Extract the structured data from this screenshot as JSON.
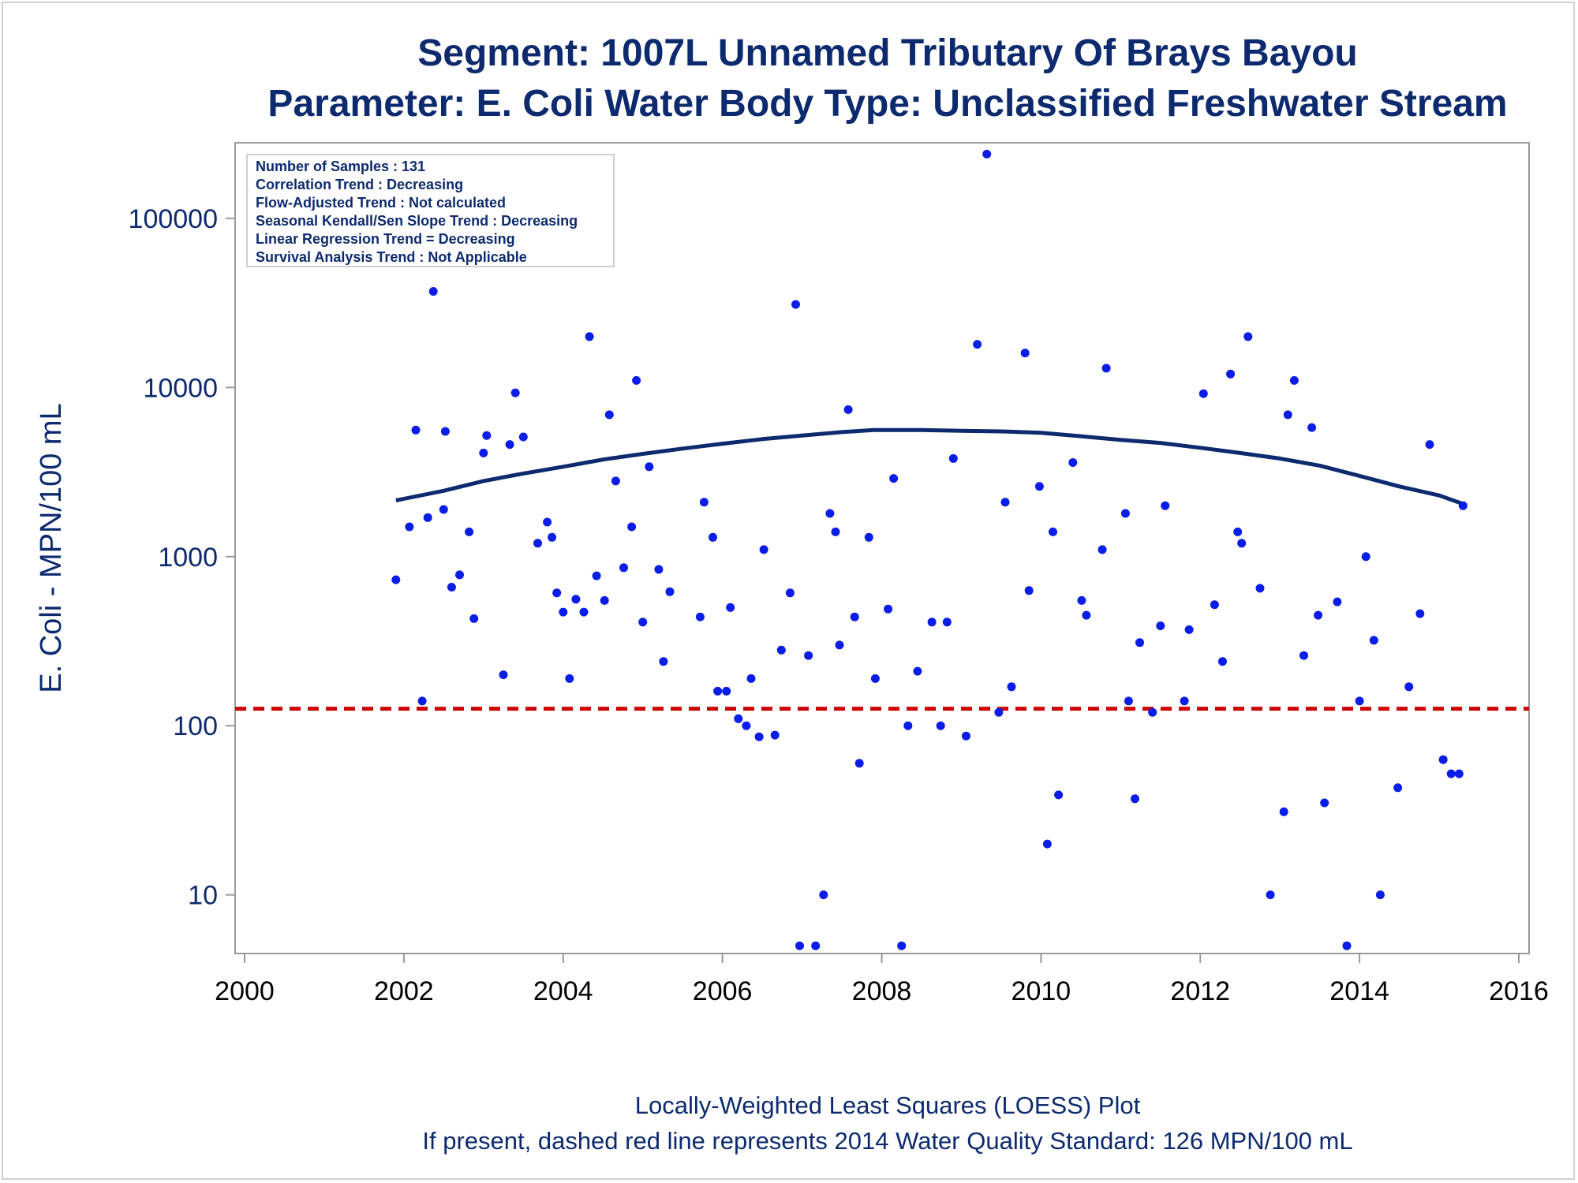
{
  "chart_data": {
    "type": "scatter",
    "title": "Segment: 1007L  Unnamed Tributary Of Brays Bayou",
    "subtitle": "Parameter: E. Coli   Water Body Type: Unclassified Freshwater Stream",
    "xlabel": "",
    "ylabel": "E. Coli - MPN/100 mL",
    "footnotes": [
      "Locally-Weighted Least Squares (LOESS) Plot",
      "If present, dashed red line represents 2014 Water Quality Standard: 126 MPN/100 mL"
    ],
    "xlim": [
      2000,
      2016
    ],
    "ylim": [
      4.5,
      280000
    ],
    "y_scale": "log",
    "x_ticks": [
      2000,
      2002,
      2004,
      2006,
      2008,
      2010,
      2012,
      2014,
      2016
    ],
    "y_ticks": [
      10,
      100,
      1000,
      10000,
      100000
    ],
    "grid": false,
    "stats_box": {
      "position": "top-left",
      "lines": [
        "Number of Samples : 131",
        "Correlation Trend : Decreasing",
        "Flow-Adjusted Trend : Not calculated",
        "Seasonal Kendall/Sen Slope Trend : Decreasing",
        "Linear Regression Trend = Decreasing",
        "Survival Analysis Trend : Not Applicable"
      ]
    },
    "reference_line": {
      "value": 126,
      "style": "dashed",
      "color": "#cc0000"
    },
    "colors": {
      "points": "#0a1de8",
      "loess": "#0d2a6e",
      "text": "#0d2a6e",
      "axis": "#9a9a9a"
    },
    "series": [
      {
        "kind": "points",
        "points": [
          [
            2001.9,
            730
          ],
          [
            2002.07,
            1500
          ],
          [
            2002.15,
            5600
          ],
          [
            2002.23,
            140
          ],
          [
            2002.3,
            1700
          ],
          [
            2002.37,
            37000
          ],
          [
            2002.5,
            1900
          ],
          [
            2002.52,
            5500
          ],
          [
            2002.6,
            660
          ],
          [
            2002.7,
            780
          ],
          [
            2002.82,
            1400
          ],
          [
            2002.88,
            430
          ],
          [
            2003.0,
            4100
          ],
          [
            2003.04,
            5200
          ],
          [
            2003.25,
            200
          ],
          [
            2003.33,
            4600
          ],
          [
            2003.4,
            9300
          ],
          [
            2003.5,
            5100
          ],
          [
            2003.68,
            1200
          ],
          [
            2003.8,
            1600
          ],
          [
            2003.86,
            1300
          ],
          [
            2003.92,
            610
          ],
          [
            2004.0,
            470
          ],
          [
            2004.08,
            190
          ],
          [
            2004.16,
            560
          ],
          [
            2004.26,
            470
          ],
          [
            2004.33,
            20000
          ],
          [
            2004.42,
            770
          ],
          [
            2004.52,
            550
          ],
          [
            2004.58,
            6900
          ],
          [
            2004.66,
            2800
          ],
          [
            2004.76,
            860
          ],
          [
            2004.86,
            1500
          ],
          [
            2004.92,
            11000
          ],
          [
            2005.0,
            410
          ],
          [
            2005.08,
            3400
          ],
          [
            2005.2,
            840
          ],
          [
            2005.26,
            240
          ],
          [
            2005.34,
            620
          ],
          [
            2005.72,
            440
          ],
          [
            2005.77,
            2100
          ],
          [
            2005.88,
            1300
          ],
          [
            2005.94,
            160
          ],
          [
            2006.05,
            160
          ],
          [
            2006.1,
            500
          ],
          [
            2006.2,
            110
          ],
          [
            2006.3,
            100
          ],
          [
            2006.36,
            190
          ],
          [
            2006.46,
            86
          ],
          [
            2006.52,
            1100
          ],
          [
            2006.66,
            88
          ],
          [
            2006.74,
            280
          ],
          [
            2006.85,
            610
          ],
          [
            2006.92,
            31000
          ],
          [
            2006.97,
            5
          ],
          [
            2007.08,
            260
          ],
          [
            2007.17,
            5
          ],
          [
            2007.27,
            10
          ],
          [
            2007.35,
            1800
          ],
          [
            2007.42,
            1400
          ],
          [
            2007.47,
            300
          ],
          [
            2007.58,
            7400
          ],
          [
            2007.66,
            440
          ],
          [
            2007.72,
            60
          ],
          [
            2007.84,
            1300
          ],
          [
            2007.92,
            190
          ],
          [
            2008.08,
            490
          ],
          [
            2008.15,
            2900
          ],
          [
            2008.25,
            5
          ],
          [
            2008.33,
            100
          ],
          [
            2008.45,
            210
          ],
          [
            2008.63,
            410
          ],
          [
            2008.74,
            100
          ],
          [
            2008.82,
            410
          ],
          [
            2008.9,
            3800
          ],
          [
            2009.06,
            87
          ],
          [
            2009.2,
            18000
          ],
          [
            2009.32,
            240000
          ],
          [
            2009.47,
            120
          ],
          [
            2009.55,
            2100
          ],
          [
            2009.63,
            170
          ],
          [
            2009.8,
            16000
          ],
          [
            2009.85,
            630
          ],
          [
            2009.98,
            2600
          ],
          [
            2010.08,
            20
          ],
          [
            2010.15,
            1400
          ],
          [
            2010.22,
            39
          ],
          [
            2010.4,
            3600
          ],
          [
            2010.51,
            550
          ],
          [
            2010.57,
            450
          ],
          [
            2010.77,
            1100
          ],
          [
            2010.82,
            13000
          ],
          [
            2011.06,
            1800
          ],
          [
            2011.1,
            140
          ],
          [
            2011.18,
            37
          ],
          [
            2011.24,
            310
          ],
          [
            2011.4,
            120
          ],
          [
            2011.5,
            390
          ],
          [
            2011.56,
            2000
          ],
          [
            2011.8,
            140
          ],
          [
            2011.86,
            370
          ],
          [
            2012.04,
            9200
          ],
          [
            2012.18,
            520
          ],
          [
            2012.28,
            240
          ],
          [
            2012.38,
            12000
          ],
          [
            2012.47,
            1400
          ],
          [
            2012.52,
            1200
          ],
          [
            2012.6,
            20000
          ],
          [
            2012.75,
            650
          ],
          [
            2012.88,
            10
          ],
          [
            2013.05,
            31
          ],
          [
            2013.1,
            6900
          ],
          [
            2013.18,
            11000
          ],
          [
            2013.3,
            260
          ],
          [
            2013.4,
            5800
          ],
          [
            2013.48,
            450
          ],
          [
            2013.56,
            35
          ],
          [
            2013.72,
            540
          ],
          [
            2013.84,
            5
          ],
          [
            2014.0,
            140
          ],
          [
            2014.08,
            1000
          ],
          [
            2014.18,
            320
          ],
          [
            2014.26,
            10
          ],
          [
            2014.48,
            43
          ],
          [
            2014.62,
            170
          ],
          [
            2014.76,
            460
          ],
          [
            2014.88,
            4600
          ],
          [
            2015.05,
            63
          ],
          [
            2015.15,
            52
          ],
          [
            2015.25,
            52
          ],
          [
            2015.3,
            2000
          ]
        ]
      },
      {
        "kind": "loess",
        "points": [
          [
            2001.9,
            2150
          ],
          [
            2002.5,
            2450
          ],
          [
            2003.0,
            2800
          ],
          [
            2003.5,
            3100
          ],
          [
            2004.0,
            3400
          ],
          [
            2004.5,
            3750
          ],
          [
            2005.0,
            4050
          ],
          [
            2005.5,
            4350
          ],
          [
            2006.0,
            4650
          ],
          [
            2006.5,
            4950
          ],
          [
            2007.0,
            5200
          ],
          [
            2007.5,
            5450
          ],
          [
            2007.9,
            5600
          ],
          [
            2008.5,
            5600
          ],
          [
            2009.0,
            5550
          ],
          [
            2009.5,
            5500
          ],
          [
            2010.0,
            5400
          ],
          [
            2010.5,
            5150
          ],
          [
            2011.0,
            4900
          ],
          [
            2011.5,
            4700
          ],
          [
            2012.0,
            4400
          ],
          [
            2012.5,
            4100
          ],
          [
            2013.0,
            3800
          ],
          [
            2013.5,
            3450
          ],
          [
            2014.0,
            3000
          ],
          [
            2014.5,
            2600
          ],
          [
            2015.0,
            2300
          ],
          [
            2015.3,
            2050
          ]
        ]
      }
    ]
  }
}
